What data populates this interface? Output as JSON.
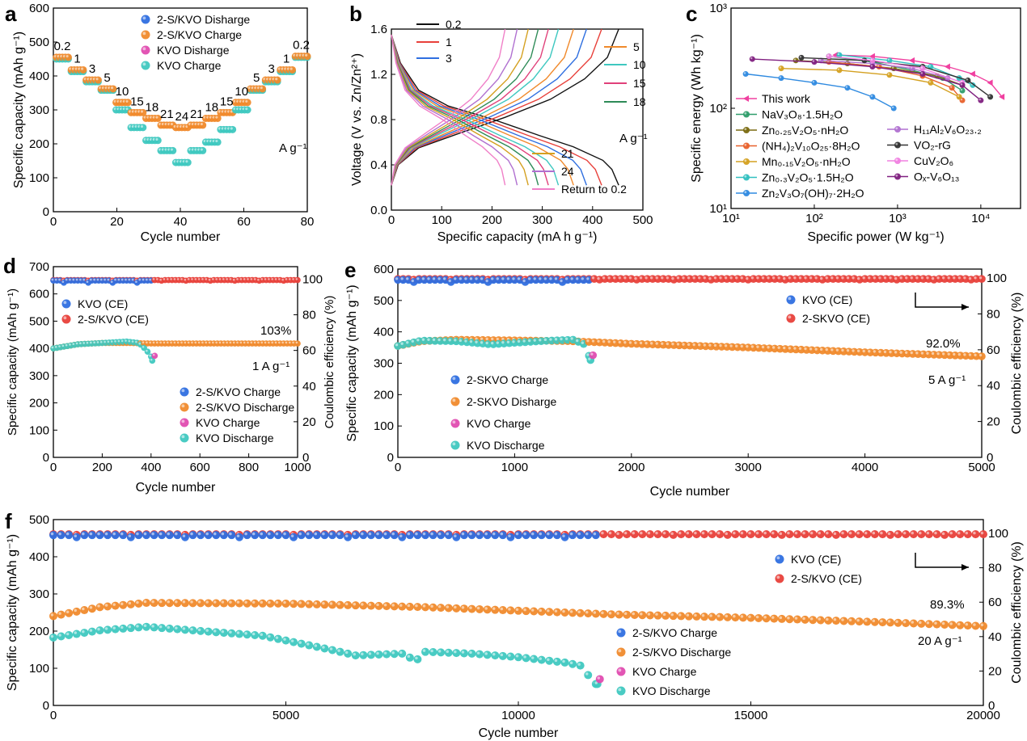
{
  "panels": {
    "a": {
      "label": "a",
      "unit": "A g⁻¹"
    },
    "b": {
      "label": "b",
      "unit": "A g⁻¹"
    },
    "c": {
      "label": "c"
    },
    "d": {
      "label": "d",
      "retention": "103%",
      "rate": "1 A g⁻¹"
    },
    "e": {
      "label": "e",
      "retention": "92.0%",
      "rate": "5 A g⁻¹"
    },
    "f": {
      "label": "f",
      "retention": "89.3%",
      "rate": "20 A g⁻¹"
    }
  },
  "colors": {
    "blue": "#2f6fe0",
    "red": "#e8403a",
    "orange": "#f08a2c",
    "teal": "#3fc8c0",
    "magenta": "#e04cb0"
  },
  "chart_data": [
    {
      "id": "a",
      "type": "scatter",
      "xlabel": "Cycle number",
      "ylabel": "Specific capacity (mAh g⁻¹)",
      "xlim": [
        0,
        85
      ],
      "ylim": [
        0,
        600
      ],
      "xticks": [
        "0",
        "20",
        "40",
        "60",
        "80"
      ],
      "yticks": [
        "0",
        "100",
        "200",
        "300",
        "400",
        "500",
        "600"
      ],
      "legend": [
        "2-S/KVO Disharge",
        "2-S/KVO Charge",
        "KVO Disharge",
        "KVO Charge"
      ],
      "rate_labels": [
        "0.2",
        "1",
        "3",
        "5",
        "10",
        "15",
        "18",
        "21",
        "24",
        "21",
        "18",
        "15",
        "10",
        "5",
        "3",
        "1",
        "0.2"
      ],
      "series": [
        {
          "name": "2-S/KVO",
          "levels": [
            455,
            418,
            388,
            362,
            322,
            292,
            275,
            255,
            248,
            255,
            275,
            292,
            322,
            362,
            388,
            418,
            458
          ]
        },
        {
          "name": "KVO",
          "levels": [
            450,
            413,
            383,
            358,
            300,
            248,
            210,
            180,
            145,
            180,
            205,
            242,
            300,
            358,
            383,
            413,
            455
          ]
        }
      ]
    },
    {
      "id": "b",
      "type": "line",
      "xlabel": "Specific capacity (mA h g⁻¹)",
      "ylabel": "Voltage (V vs. Zn/Zn²⁺)",
      "xlim": [
        0,
        500
      ],
      "ylim": [
        0,
        1.6
      ],
      "xticks": [
        "0",
        "100",
        "200",
        "300",
        "400",
        "500"
      ],
      "yticks": [
        "0.0",
        "0.4",
        "0.8",
        "1.2",
        "1.6"
      ],
      "series": [
        {
          "name": "0.2",
          "capacity": 452
        },
        {
          "name": "1",
          "capacity": 418
        },
        {
          "name": "3",
          "capacity": 388
        },
        {
          "name": "5",
          "capacity": 362
        },
        {
          "name": "10",
          "capacity": 332
        },
        {
          "name": "15",
          "capacity": 312
        },
        {
          "name": "18",
          "capacity": 292
        },
        {
          "name": "21",
          "capacity": 272
        },
        {
          "name": "24",
          "capacity": 250
        },
        {
          "name": "Return to 0.2",
          "capacity": 226
        }
      ]
    },
    {
      "id": "c",
      "type": "line",
      "xlabel": "Specific power (W kg⁻¹)",
      "ylabel": "Specific energy (Wh kg⁻¹)",
      "xscale": "log",
      "yscale": "log",
      "xlim": [
        10,
        30000
      ],
      "ylim": [
        10,
        1000
      ],
      "xticks": [
        "10¹",
        "10²",
        "10³",
        "10⁴"
      ],
      "yticks": [
        "10¹",
        "10²",
        "10³"
      ],
      "series": [
        {
          "name": "This work",
          "points": [
            [
              180,
              340
            ],
            [
              500,
              330
            ],
            [
              1500,
              300
            ],
            [
              4000,
              260
            ],
            [
              8000,
              220
            ],
            [
              13000,
              180
            ],
            [
              18000,
              130
            ]
          ]
        },
        {
          "name": "NaV₃O₈·1.5H₂O",
          "points": [
            [
              150,
              330
            ],
            [
              500,
              290
            ],
            [
              1500,
              240
            ],
            [
              3500,
              200
            ],
            [
              6000,
              150
            ]
          ]
        },
        {
          "name": "Zn₀.₂₅V₂O₅·nH₂O",
          "points": [
            [
              60,
              300
            ],
            [
              250,
              280
            ],
            [
              900,
              250
            ],
            [
              3000,
              210
            ],
            [
              6000,
              170
            ]
          ]
        },
        {
          "name": "(NH₄)₂V₁₀O₂₅·8H₂O",
          "points": [
            [
              150,
              290
            ],
            [
              600,
              260
            ],
            [
              2000,
              210
            ],
            [
              4500,
              160
            ],
            [
              6000,
              120
            ]
          ]
        },
        {
          "name": "Mn₀.₁₅V₂O₅·nH₂O",
          "points": [
            [
              40,
              250
            ],
            [
              200,
              240
            ],
            [
              800,
              215
            ],
            [
              2500,
              180
            ],
            [
              5500,
              130
            ]
          ]
        },
        {
          "name": "Zn₀.₃V₂O₅·1.5H₂O",
          "points": [
            [
              200,
              340
            ],
            [
              800,
              300
            ],
            [
              2500,
              260
            ],
            [
              5500,
              200
            ],
            [
              8000,
              170
            ]
          ]
        },
        {
          "name": "Zn₂V₃O₇(OH)₇·2H₂O",
          "points": [
            [
              15,
              220
            ],
            [
              40,
              200
            ],
            [
              100,
              180
            ],
            [
              250,
              160
            ],
            [
              500,
              130
            ],
            [
              900,
              100
            ]
          ]
        },
        {
          "name": "H₁₁Al₂V₆O₂₃.₂",
          "points": [
            [
              120,
              300
            ],
            [
              500,
              280
            ],
            [
              1500,
              250
            ],
            [
              4000,
              200
            ]
          ]
        },
        {
          "name": "VO₂-rG",
          "points": [
            [
              70,
              320
            ],
            [
              400,
              300
            ],
            [
              2000,
              260
            ],
            [
              7000,
              190
            ],
            [
              13000,
              130
            ]
          ]
        },
        {
          "name": "CuV₂O₆",
          "points": [
            [
              150,
              330
            ],
            [
              500,
              300
            ],
            [
              2000,
              250
            ],
            [
              6000,
              180
            ]
          ]
        },
        {
          "name": "Oₓ-V₆O₁₃",
          "points": [
            [
              18,
              310
            ],
            [
              100,
              290
            ],
            [
              500,
              260
            ],
            [
              2000,
              220
            ],
            [
              6000,
              170
            ],
            [
              10000,
              120
            ]
          ]
        }
      ]
    },
    {
      "id": "d",
      "type": "scatter",
      "xlabel": "Cycle number",
      "ylabel": "Specific capacity (mAh g⁻¹)",
      "y2label": "Coulombic efficiency (%)",
      "xlim": [
        0,
        1000
      ],
      "ylim": [
        0,
        700
      ],
      "y2lim": [
        0,
        107
      ],
      "xticks": [
        "0",
        "200",
        "400",
        "600",
        "800",
        "1000"
      ],
      "yticks": [
        "0",
        "100",
        "200",
        "300",
        "400",
        "500",
        "600",
        "700"
      ],
      "y2ticks": [
        "0",
        "20",
        "40",
        "60",
        "80",
        "100"
      ],
      "legend_ce": [
        "KVO (CE)",
        "2-S/KVO (CE)"
      ],
      "legend_cap": [
        "2-S/KVO Charge",
        "2-S/KVO Discharge",
        "KVO Charge",
        "KVO Discharge"
      ],
      "series": [
        {
          "name": "2-S/KVO capacity",
          "x": [
            0,
            100,
            200,
            300,
            400,
            600,
            800,
            1000
          ],
          "y": [
            400,
            415,
            420,
            420,
            418,
            418,
            418,
            418
          ]
        },
        {
          "name": "KVO capacity",
          "x": [
            0,
            100,
            200,
            300,
            350,
            380,
            400,
            405
          ],
          "y": [
            400,
            415,
            420,
            425,
            420,
            395,
            370,
            355
          ]
        },
        {
          "name": "2-S/KVO CE",
          "value": 99.5
        },
        {
          "name": "KVO CE",
          "value": 99.2,
          "end_cycle": 405
        }
      ]
    },
    {
      "id": "e",
      "type": "scatter",
      "xlabel": "Cycle number",
      "ylabel": "Specific capacity (mAh g⁻¹)",
      "y2label": "Coulombic efficiency (%)",
      "xlim": [
        0,
        5000
      ],
      "ylim": [
        0,
        600
      ],
      "y2lim": [
        0,
        105
      ],
      "xticks": [
        "0",
        "1000",
        "2000",
        "3000",
        "4000",
        "5000"
      ],
      "yticks": [
        "0",
        "100",
        "200",
        "300",
        "400",
        "500",
        "600"
      ],
      "y2ticks": [
        "0",
        "20",
        "40",
        "60",
        "80",
        "100"
      ],
      "legend_ce": [
        "KVO (CE)",
        "2-SKVO (CE)"
      ],
      "legend_cap": [
        "2-SKVO Charge",
        "2-SKVO Disharge",
        "KVO Charge",
        "KVO Discharge"
      ],
      "series": [
        {
          "name": "2-SKVO capacity",
          "x": [
            0,
            200,
            500,
            1000,
            1500,
            2000,
            3000,
            4000,
            5000
          ],
          "y": [
            355,
            370,
            375,
            373,
            370,
            362,
            350,
            335,
            322
          ]
        },
        {
          "name": "KVO capacity",
          "x": [
            0,
            200,
            500,
            800,
            1000,
            1300,
            1500,
            1600,
            1650
          ],
          "y": [
            355,
            372,
            370,
            360,
            365,
            372,
            375,
            360,
            310
          ]
        },
        {
          "name": "2-SKVO CE",
          "value": 99.5
        },
        {
          "name": "KVO CE",
          "value": 99.0,
          "end_cycle": 1650
        }
      ]
    },
    {
      "id": "f",
      "type": "scatter",
      "xlabel": "Cycle number",
      "ylabel": "Specific capacity (mAh g⁻¹)",
      "y2label": "Coulombic efficiency (%)",
      "xlim": [
        0,
        20000
      ],
      "ylim": [
        0,
        520
      ],
      "y2lim": [
        0,
        108
      ],
      "xticks": [
        "0",
        "5000",
        "10000",
        "15000",
        "20000"
      ],
      "yticks": [
        "0",
        "100",
        "200",
        "300",
        "400",
        "500"
      ],
      "y2ticks": [
        "0",
        "20",
        "40",
        "60",
        "80",
        "100"
      ],
      "legend_ce": [
        "KVO (CE)",
        "2-S/KVO (CE)"
      ],
      "legend_cap": [
        "2-S/KVO Charge",
        "2-S/KVO Discharge",
        "KVO Charge",
        "KVO Discharge"
      ],
      "series": [
        {
          "name": "2-S/KVO capacity",
          "x": [
            0,
            1000,
            2000,
            5000,
            8000,
            10000,
            12000,
            15000,
            18000,
            20000
          ],
          "y": [
            250,
            275,
            287,
            285,
            275,
            265,
            255,
            245,
            232,
            222
          ]
        },
        {
          "name": "KVO capacity",
          "x": [
            0,
            1000,
            2000,
            3000,
            4500,
            6000,
            6500,
            7500,
            7800,
            8000,
            9000,
            10000,
            11000,
            11400,
            11600,
            11700
          ],
          "y": [
            190,
            210,
            220,
            210,
            195,
            155,
            140,
            145,
            125,
            150,
            145,
            135,
            120,
            110,
            60,
            60
          ]
        },
        {
          "name": "2-S/KVO CE",
          "value": 99.5
        },
        {
          "name": "KVO CE",
          "value": 99.0,
          "end_cycle": 11700
        }
      ]
    }
  ]
}
